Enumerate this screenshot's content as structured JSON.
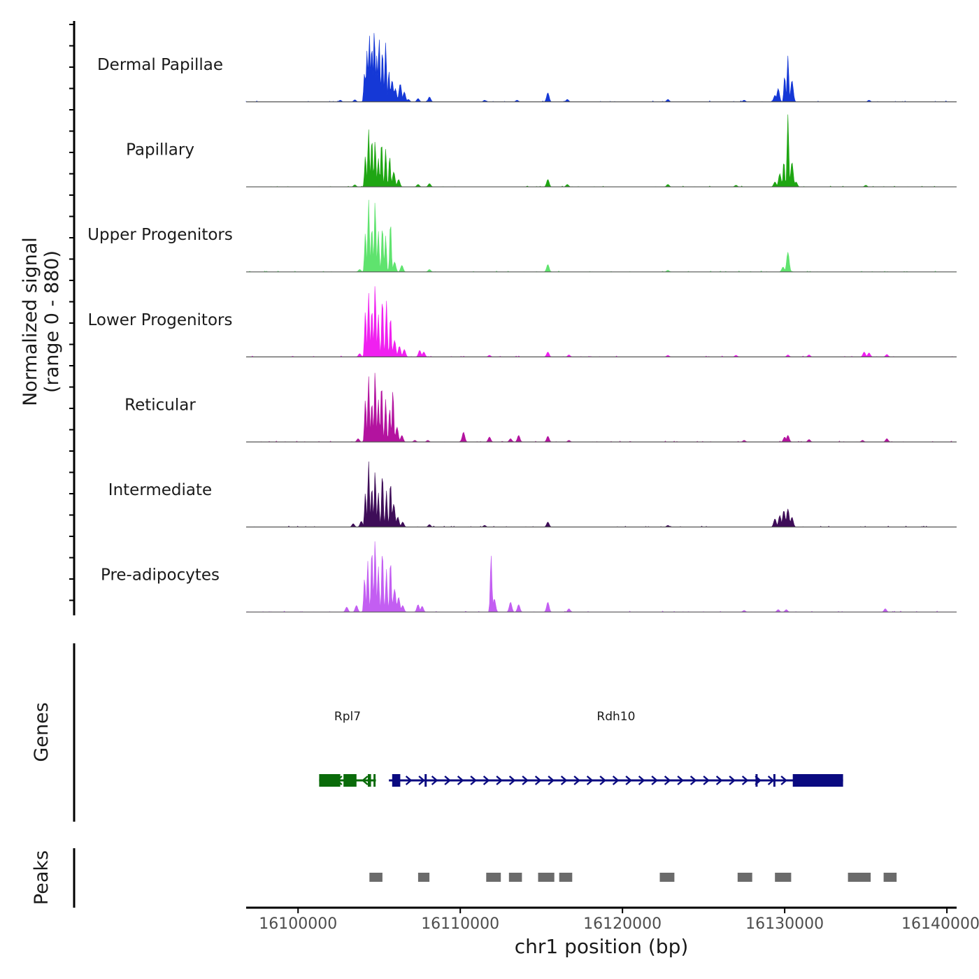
{
  "chart_data": {
    "type": "area",
    "region": {
      "chrom": "chr1",
      "start": 16096800,
      "end": 16140600
    },
    "signal_ylabel": "Normalized signal",
    "signal_range_label": "(range 0 - 880)",
    "signal_range": [
      0,
      880
    ],
    "genes_label": "Genes",
    "peaks_label": "Peaks",
    "xlabel": "chr1 position (bp)",
    "x_ticks": [
      16100000,
      16110000,
      16120000,
      16130000,
      16140000
    ],
    "x_tick_labels": [
      "16100000",
      "16110000",
      "16120000",
      "16130000",
      "16140000"
    ],
    "series": [
      {
        "name": "Dermal Papillae",
        "color": "#1538d6",
        "peaks": [
          [
            16102600,
            20
          ],
          [
            16103500,
            25
          ],
          [
            16104100,
            360
          ],
          [
            16104250,
            620
          ],
          [
            16104400,
            820
          ],
          [
            16104550,
            700
          ],
          [
            16104700,
            880
          ],
          [
            16104850,
            560
          ],
          [
            16105000,
            780
          ],
          [
            16105200,
            640
          ],
          [
            16105400,
            720
          ],
          [
            16105600,
            380
          ],
          [
            16105800,
            260
          ],
          [
            16106000,
            160
          ],
          [
            16106300,
            220
          ],
          [
            16106550,
            120
          ],
          [
            16106800,
            30
          ],
          [
            16107400,
            40
          ],
          [
            16108100,
            60
          ],
          [
            16111500,
            20
          ],
          [
            16113500,
            20
          ],
          [
            16115400,
            110
          ],
          [
            16116600,
            30
          ],
          [
            16122800,
            30
          ],
          [
            16127500,
            20
          ],
          [
            16129400,
            80
          ],
          [
            16129600,
            160
          ],
          [
            16130000,
            320
          ],
          [
            16130200,
            560
          ],
          [
            16130450,
            260
          ],
          [
            16135200,
            20
          ]
        ]
      },
      {
        "name": "Papillary",
        "color": "#1fa613",
        "peaks": [
          [
            16103500,
            25
          ],
          [
            16104150,
            380
          ],
          [
            16104350,
            700
          ],
          [
            16104550,
            600
          ],
          [
            16104750,
            560
          ],
          [
            16104950,
            350
          ],
          [
            16105150,
            560
          ],
          [
            16105400,
            460
          ],
          [
            16105650,
            380
          ],
          [
            16105900,
            180
          ],
          [
            16106200,
            90
          ],
          [
            16107400,
            30
          ],
          [
            16108100,
            40
          ],
          [
            16115400,
            90
          ],
          [
            16116600,
            30
          ],
          [
            16122800,
            30
          ],
          [
            16127000,
            20
          ],
          [
            16129400,
            60
          ],
          [
            16129700,
            160
          ],
          [
            16129950,
            320
          ],
          [
            16130200,
            880
          ],
          [
            16130450,
            300
          ],
          [
            16130700,
            60
          ],
          [
            16135000,
            20
          ]
        ]
      },
      {
        "name": "Upper Progenitors",
        "color": "#5fe36e",
        "peaks": [
          [
            16103800,
            30
          ],
          [
            16104150,
            480
          ],
          [
            16104350,
            880
          ],
          [
            16104550,
            560
          ],
          [
            16104750,
            860
          ],
          [
            16104950,
            500
          ],
          [
            16105200,
            560
          ],
          [
            16105400,
            440
          ],
          [
            16105700,
            620
          ],
          [
            16105950,
            120
          ],
          [
            16106400,
            80
          ],
          [
            16108100,
            30
          ],
          [
            16115400,
            90
          ],
          [
            16122800,
            20
          ],
          [
            16130200,
            240
          ],
          [
            16129900,
            60
          ]
        ]
      },
      {
        "name": "Lower Progenitors",
        "color": "#f020f0",
        "peaks": [
          [
            16103800,
            40
          ],
          [
            16104150,
            560
          ],
          [
            16104350,
            780
          ],
          [
            16104550,
            600
          ],
          [
            16104750,
            880
          ],
          [
            16104950,
            520
          ],
          [
            16105200,
            720
          ],
          [
            16105450,
            680
          ],
          [
            16105700,
            500
          ],
          [
            16105950,
            200
          ],
          [
            16106250,
            130
          ],
          [
            16106550,
            90
          ],
          [
            16107500,
            80
          ],
          [
            16107750,
            60
          ],
          [
            16111800,
            20
          ],
          [
            16115400,
            60
          ],
          [
            16116700,
            25
          ],
          [
            16122800,
            20
          ],
          [
            16127000,
            20
          ],
          [
            16130200,
            25
          ],
          [
            16131500,
            25
          ],
          [
            16134900,
            60
          ],
          [
            16135200,
            50
          ],
          [
            16136300,
            30
          ]
        ]
      },
      {
        "name": "Reticular",
        "color": "#b3139f",
        "peaks": [
          [
            16103700,
            40
          ],
          [
            16104150,
            520
          ],
          [
            16104350,
            800
          ],
          [
            16104550,
            500
          ],
          [
            16104750,
            860
          ],
          [
            16104950,
            520
          ],
          [
            16105150,
            720
          ],
          [
            16105400,
            520
          ],
          [
            16105650,
            420
          ],
          [
            16105850,
            640
          ],
          [
            16106100,
            180
          ],
          [
            16106400,
            80
          ],
          [
            16107200,
            20
          ],
          [
            16108000,
            20
          ],
          [
            16110200,
            120
          ],
          [
            16111800,
            60
          ],
          [
            16113100,
            40
          ],
          [
            16113600,
            80
          ],
          [
            16115400,
            70
          ],
          [
            16116700,
            20
          ],
          [
            16127500,
            20
          ],
          [
            16130000,
            60
          ],
          [
            16130200,
            80
          ],
          [
            16131500,
            30
          ],
          [
            16134800,
            20
          ],
          [
            16136300,
            40
          ]
        ]
      },
      {
        "name": "Intermediate",
        "color": "#3e0d58",
        "peaks": [
          [
            16103400,
            40
          ],
          [
            16103900,
            70
          ],
          [
            16104150,
            420
          ],
          [
            16104350,
            800
          ],
          [
            16104550,
            500
          ],
          [
            16104750,
            680
          ],
          [
            16104950,
            420
          ],
          [
            16105200,
            660
          ],
          [
            16105450,
            440
          ],
          [
            16105700,
            560
          ],
          [
            16105900,
            280
          ],
          [
            16106150,
            120
          ],
          [
            16106450,
            60
          ],
          [
            16108100,
            30
          ],
          [
            16111500,
            20
          ],
          [
            16115400,
            60
          ],
          [
            16122800,
            20
          ],
          [
            16129400,
            100
          ],
          [
            16129700,
            140
          ],
          [
            16129950,
            200
          ],
          [
            16130200,
            220
          ],
          [
            16130450,
            120
          ]
        ]
      },
      {
        "name": "Pre-adipocytes",
        "color": "#c35ef2",
        "peaks": [
          [
            16103000,
            60
          ],
          [
            16103600,
            80
          ],
          [
            16104100,
            420
          ],
          [
            16104300,
            620
          ],
          [
            16104550,
            780
          ],
          [
            16104750,
            880
          ],
          [
            16104950,
            560
          ],
          [
            16105200,
            760
          ],
          [
            16105450,
            520
          ],
          [
            16105700,
            640
          ],
          [
            16105950,
            280
          ],
          [
            16106200,
            180
          ],
          [
            16106450,
            80
          ],
          [
            16107400,
            90
          ],
          [
            16107650,
            70
          ],
          [
            16111900,
            700
          ],
          [
            16112100,
            160
          ],
          [
            16113100,
            120
          ],
          [
            16113600,
            90
          ],
          [
            16115400,
            120
          ],
          [
            16116700,
            40
          ],
          [
            16127500,
            20
          ],
          [
            16129600,
            30
          ],
          [
            16130100,
            30
          ],
          [
            16136200,
            40
          ]
        ]
      }
    ],
    "genes": [
      {
        "name": "Rpl7",
        "color": "#0a6b0a",
        "start": 16101300,
        "end": 16104800,
        "strand": "-",
        "exons": [
          [
            16101300,
            16102600
          ],
          [
            16102800,
            16103600
          ],
          [
            16104300,
            16104500
          ],
          [
            16104650,
            16104750
          ]
        ]
      },
      {
        "name": "Rdh10",
        "color": "#0a0a80",
        "start": 16105600,
        "end": 16133600,
        "strand": "+",
        "exons": [
          [
            16105800,
            16106300
          ],
          [
            16107800,
            16107900
          ],
          [
            16128200,
            16128250
          ],
          [
            16129300,
            16129350
          ],
          [
            16130500,
            16133600
          ]
        ]
      }
    ],
    "peaks": [
      [
        16104400,
        16105200
      ],
      [
        16107400,
        16108100
      ],
      [
        16111600,
        16112500
      ],
      [
        16113000,
        16113800
      ],
      [
        16114800,
        16115800
      ],
      [
        16116100,
        16116900
      ],
      [
        16122300,
        16123200
      ],
      [
        16127100,
        16128000
      ],
      [
        16129400,
        16130400
      ],
      [
        16133900,
        16135300
      ],
      [
        16136100,
        16136900
      ]
    ]
  }
}
